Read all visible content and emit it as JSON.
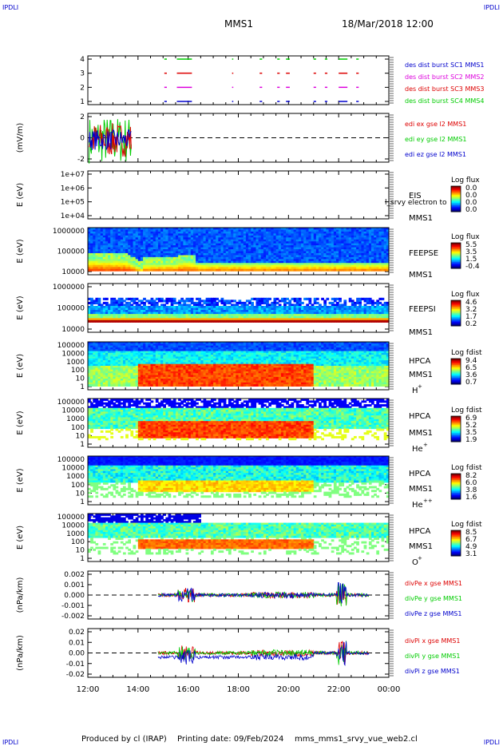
{
  "header": {
    "corner_label": "IPDLI",
    "title": "MMS1",
    "datetime": "18/Mar/2018 12:00"
  },
  "footer": {
    "produced_by": "Produced by cl (IRAP)",
    "printing_date": "Printing date: 09/Feb/2024",
    "script": "mms_mms1_srvy_vue_web2.cl",
    "corner_label": "IPDLI"
  },
  "colors": {
    "red": "#dd0000",
    "green": "#00cc00",
    "blue": "#0000cc",
    "magenta": "#dd00dd",
    "background": "#ffffff",
    "axis": "#000000"
  },
  "panels": [
    {
      "id": "des_dist_burst",
      "type": "availability",
      "yticks": [
        "4",
        "3",
        "2",
        "1"
      ],
      "labels": [
        {
          "text": "des dist burst SC1 MMS1",
          "color": "#0000cc"
        },
        {
          "text": "des dist burst SC2 MMS2",
          "color": "#dd00dd"
        },
        {
          "text": "des dist burst SC3 MMS3",
          "color": "#dd0000"
        },
        {
          "text": "des dist burst SC4 MMS4",
          "color": "#00cc00"
        }
      ]
    },
    {
      "id": "edi_e",
      "type": "line",
      "ylabel": "(mV/m)",
      "yticks": [
        "2",
        "0",
        "-2"
      ],
      "labels": [
        {
          "text": "edi ex gse l2 MMS1",
          "color": "#dd0000"
        },
        {
          "text": "edi ey gse l2 MMS1",
          "color": "#00cc00"
        },
        {
          "text": "edi ez gse l2 MMS1",
          "color": "#0000cc"
        }
      ]
    },
    {
      "id": "eis",
      "type": "spectrogram",
      "ylabel": "E (eV)",
      "yticks": [
        "1e+07",
        "1e+06",
        "1e+05",
        "1e+04"
      ],
      "instrument": [
        "EIS",
        "MMS1"
      ],
      "overlay_text": "l_srvy electron to",
      "colorbar": {
        "title": "Log flux",
        "ticks": [
          "0.0",
          "0.0",
          "0.0",
          "0.0"
        ]
      }
    },
    {
      "id": "feepse",
      "type": "spectrogram",
      "ylabel": "E (eV)",
      "yticks": [
        "1000000",
        "100000",
        "10000"
      ],
      "instrument": [
        "FEEPSE",
        "MMS1"
      ],
      "colorbar": {
        "title": "Log flux",
        "ticks": [
          "5.5",
          "3.5",
          "1.5",
          "-0.4"
        ]
      }
    },
    {
      "id": "feepsi",
      "type": "spectrogram",
      "ylabel": "E (eV)",
      "yticks": [
        "1000000",
        "100000",
        "10000"
      ],
      "instrument": [
        "FEEPSI",
        "MMS1"
      ],
      "colorbar": {
        "title": "Log flux",
        "ticks": [
          "4.6",
          "3.2",
          "1.7",
          "0.2"
        ]
      }
    },
    {
      "id": "hpca_h",
      "type": "spectrogram",
      "ylabel": "E (eV)",
      "yticks": [
        "100000",
        "10000",
        "1000",
        "100",
        "10",
        "1"
      ],
      "instrument": [
        "HPCA",
        "MMS1"
      ],
      "species": "H",
      "species_sup": "+",
      "colorbar": {
        "title": "Log fdist",
        "ticks": [
          "9.4",
          "6.5",
          "3.6",
          "0.7"
        ]
      }
    },
    {
      "id": "hpca_he",
      "type": "spectrogram",
      "ylabel": "E (eV)",
      "yticks": [
        "100000",
        "10000",
        "1000",
        "100",
        "10",
        "1"
      ],
      "instrument": [
        "HPCA",
        "MMS1"
      ],
      "species": "He",
      "species_sup": "+",
      "colorbar": {
        "title": "Log fdist",
        "ticks": [
          "6.9",
          "5.2",
          "3.5",
          "1.9"
        ]
      }
    },
    {
      "id": "hpca_hepp",
      "type": "spectrogram",
      "ylabel": "E (eV)",
      "yticks": [
        "100000",
        "10000",
        "1000",
        "100",
        "10",
        "1"
      ],
      "instrument": [
        "HPCA",
        "MMS1"
      ],
      "species": "He",
      "species_sup": "++",
      "colorbar": {
        "title": "Log fdist",
        "ticks": [
          "8.2",
          "6.0",
          "3.8",
          "1.6"
        ]
      }
    },
    {
      "id": "hpca_o",
      "type": "spectrogram",
      "ylabel": "E (eV)",
      "yticks": [
        "100000",
        "10000",
        "1000",
        "100",
        "10",
        "1"
      ],
      "instrument": [
        "HPCA",
        "MMS1"
      ],
      "species": "O",
      "species_sup": "+",
      "colorbar": {
        "title": "Log fdist",
        "ticks": [
          "8.5",
          "6.7",
          "4.9",
          "3.1"
        ]
      }
    },
    {
      "id": "divpe",
      "type": "line",
      "ylabel": "(nPa/km)",
      "yticks": [
        "0.002",
        "0.001",
        "0.000",
        "-0.001",
        "-0.002"
      ],
      "labels": [
        {
          "text": "divPe x gse MMS1",
          "color": "#dd0000"
        },
        {
          "text": "divPe y gse MMS1",
          "color": "#00cc00"
        },
        {
          "text": "divPe z gse MMS1",
          "color": "#0000cc"
        }
      ]
    },
    {
      "id": "divpi",
      "type": "line",
      "ylabel": "(nPa/km)",
      "yticks": [
        "0.02",
        "0.01",
        "0.00",
        "-0.01",
        "-0.02"
      ],
      "labels": [
        {
          "text": "divPi x gse MMS1",
          "color": "#dd0000"
        },
        {
          "text": "divPi y gse MMS1",
          "color": "#00cc00"
        },
        {
          "text": "divPi z gse MMS1",
          "color": "#0000cc"
        }
      ]
    }
  ],
  "chart_data": {
    "type": "line",
    "title": "MMS1",
    "subtitle": "18/Mar/2018 12:00",
    "xlabel": "",
    "x_ticks": [
      "12:00",
      "14:00",
      "16:00",
      "18:00",
      "20:00",
      "22:00",
      "00:00"
    ],
    "x_range_hours": [
      12,
      24
    ],
    "burst_intervals_hours": [
      [
        15.05,
        15.15
      ],
      [
        15.55,
        16.15
      ],
      [
        17.75,
        17.8
      ],
      [
        18.85,
        18.95
      ],
      [
        19.55,
        19.65
      ],
      [
        19.9,
        20.05
      ],
      [
        21.0,
        21.1
      ],
      [
        21.45,
        21.55
      ],
      [
        22.0,
        22.35
      ],
      [
        22.7,
        22.8
      ]
    ],
    "edi_coverage_hours": [
      12.05,
      13.75
    ],
    "edi_range_mVm": [
      -3,
      2
    ],
    "divPe_range_nPa_km": [
      -0.003,
      0.003
    ],
    "divPi_range_nPa_km": [
      -0.02,
      0.02
    ],
    "feepse_low_energy_edge": [
      {
        "t": 12.0,
        "log10E": 5.0
      },
      {
        "t": 13.5,
        "log10E": 4.8
      },
      {
        "t": 14.2,
        "log10E": 4.3
      },
      {
        "t": 15.5,
        "log10E": 4.3
      },
      {
        "t": 16.0,
        "log10E": 4.7
      },
      {
        "t": 16.3,
        "log10E": 4.3
      }
    ],
    "hpca_h_hot_interval_hours": [
      [
        14.0,
        21.0
      ]
    ],
    "series": [
      {
        "name": "edi ex gse l2 MMS1"
      },
      {
        "name": "edi ey gse l2 MMS1"
      },
      {
        "name": "edi ez gse l2 MMS1"
      },
      {
        "name": "divPe x gse MMS1"
      },
      {
        "name": "divPe y gse MMS1"
      },
      {
        "name": "divPe z gse MMS1"
      },
      {
        "name": "divPi x gse MMS1"
      },
      {
        "name": "divPi y gse MMS1"
      },
      {
        "name": "divPi z gse MMS1"
      }
    ]
  }
}
